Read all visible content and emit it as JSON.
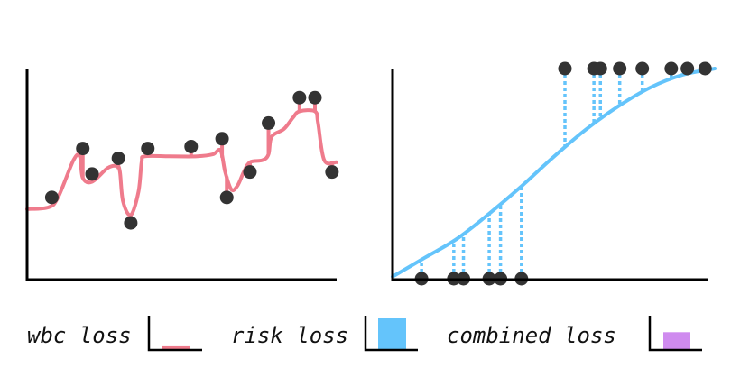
{
  "colors": {
    "wbc": "#ef7b8c",
    "risk": "#64c4fb",
    "combined": "#cf8bef",
    "points": "#333333",
    "axes": "#000000"
  },
  "legend": [
    {
      "id": "wbc",
      "label": "wbc loss",
      "color": "#ef7b8c",
      "swatch_fill": 0.12
    },
    {
      "id": "risk",
      "label": "risk loss",
      "color": "#64c4fb",
      "swatch_fill": 1.0
    },
    {
      "id": "combined",
      "label": "combined loss",
      "color": "#cf8bef",
      "swatch_fill": 0.55
    }
  ],
  "chart_data": [
    {
      "type": "scatter",
      "panel": "left",
      "x_range": [
        0,
        1
      ],
      "y_range": [
        0,
        1
      ],
      "curve": [
        [
          0.0,
          0.36
        ],
        [
          0.07,
          0.37
        ],
        [
          0.1,
          0.42
        ],
        [
          0.15,
          0.61
        ],
        [
          0.17,
          0.63
        ],
        [
          0.18,
          0.52
        ],
        [
          0.21,
          0.5
        ],
        [
          0.26,
          0.57
        ],
        [
          0.29,
          0.58
        ],
        [
          0.3,
          0.55
        ],
        [
          0.31,
          0.4
        ],
        [
          0.335,
          0.33
        ],
        [
          0.36,
          0.45
        ],
        [
          0.37,
          0.6
        ],
        [
          0.38,
          0.63
        ],
        [
          0.46,
          0.63
        ],
        [
          0.55,
          0.63
        ],
        [
          0.6,
          0.64
        ],
        [
          0.625,
          0.66
        ],
        [
          0.64,
          0.55
        ],
        [
          0.66,
          0.46
        ],
        [
          0.68,
          0.48
        ],
        [
          0.7,
          0.55
        ],
        [
          0.72,
          0.6
        ],
        [
          0.76,
          0.61
        ],
        [
          0.78,
          0.64
        ],
        [
          0.79,
          0.73
        ],
        [
          0.83,
          0.77
        ],
        [
          0.86,
          0.83
        ],
        [
          0.88,
          0.86
        ],
        [
          0.93,
          0.86
        ],
        [
          0.94,
          0.8
        ],
        [
          0.96,
          0.61
        ],
        [
          1.0,
          0.6
        ]
      ],
      "points": [
        {
          "x": 0.08,
          "y": 0.42
        },
        {
          "x": 0.18,
          "y": 0.67
        },
        {
          "x": 0.21,
          "y": 0.54
        },
        {
          "x": 0.295,
          "y": 0.62
        },
        {
          "x": 0.335,
          "y": 0.29
        },
        {
          "x": 0.39,
          "y": 0.67
        },
        {
          "x": 0.53,
          "y": 0.68
        },
        {
          "x": 0.63,
          "y": 0.72
        },
        {
          "x": 0.645,
          "y": 0.42
        },
        {
          "x": 0.72,
          "y": 0.55
        },
        {
          "x": 0.78,
          "y": 0.8
        },
        {
          "x": 0.88,
          "y": 0.93
        },
        {
          "x": 0.93,
          "y": 0.93
        },
        {
          "x": 0.985,
          "y": 0.55
        }
      ]
    },
    {
      "type": "scatter",
      "panel": "right",
      "x_range": [
        0,
        1
      ],
      "y_range": [
        0,
        1
      ],
      "curve": [
        [
          0.0,
          0.01
        ],
        [
          0.1,
          0.1
        ],
        [
          0.2,
          0.19
        ],
        [
          0.3,
          0.31
        ],
        [
          0.4,
          0.44
        ],
        [
          0.5,
          0.58
        ],
        [
          0.6,
          0.71
        ],
        [
          0.7,
          0.82
        ],
        [
          0.8,
          0.91
        ],
        [
          0.9,
          0.97
        ],
        [
          1.0,
          1.0
        ]
      ],
      "points": [
        {
          "x": 0.09,
          "y": 0.0
        },
        {
          "x": 0.19,
          "y": 0.0
        },
        {
          "x": 0.22,
          "y": 0.0
        },
        {
          "x": 0.3,
          "y": 0.0
        },
        {
          "x": 0.335,
          "y": 0.0
        },
        {
          "x": 0.4,
          "y": 0.0
        },
        {
          "x": 0.535,
          "y": 1.0
        },
        {
          "x": 0.625,
          "y": 1.0
        },
        {
          "x": 0.645,
          "y": 1.0
        },
        {
          "x": 0.705,
          "y": 1.0
        },
        {
          "x": 0.775,
          "y": 1.0
        },
        {
          "x": 0.865,
          "y": 1.0
        },
        {
          "x": 0.915,
          "y": 1.0
        },
        {
          "x": 0.97,
          "y": 1.0
        }
      ]
    }
  ]
}
